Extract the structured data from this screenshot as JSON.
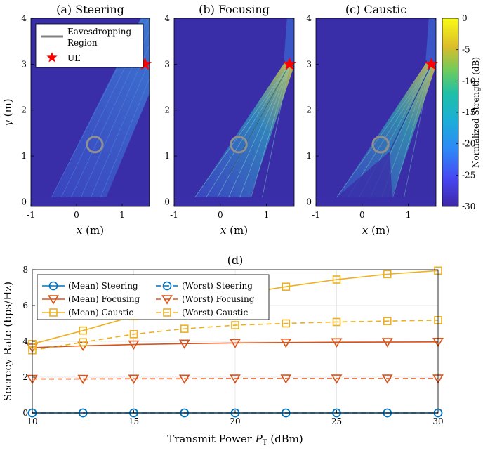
{
  "top_panels": {
    "titles": [
      "(a) Steering",
      "(b) Focusing",
      "(c) Caustic"
    ],
    "xlabel_var": "x",
    "xlabel_unit": " (m)",
    "ylabel_var": "y",
    "ylabel_unit": " (m)",
    "xticks": [
      "-1",
      "0",
      "1"
    ],
    "yticks": [
      "0",
      "1",
      "2",
      "3",
      "4"
    ],
    "legend": {
      "region": "Eavesdropping",
      "region2": "Region",
      "ue": "UE"
    },
    "colorbar": {
      "label": "Normalized Strength (dB)",
      "ticks": [
        "0",
        "-5",
        "-10",
        "-15",
        "-20",
        "-25",
        "-30"
      ]
    },
    "colors": {
      "background": "#3a2ea8",
      "circle": "#909090",
      "star": "#ff0000",
      "legend_line": "#808080"
    }
  },
  "chart_data": [
    {
      "type": "heatmap",
      "title": "(a) Steering",
      "xlim": [
        -1,
        1.6
      ],
      "ylim": [
        -0.1,
        4
      ],
      "ue": [
        1.5,
        3.0
      ],
      "eavesdrop_circle": {
        "center": [
          0.4,
          1.25
        ],
        "radius": 0.17
      }
    },
    {
      "type": "heatmap",
      "title": "(b) Focusing",
      "xlim": [
        -1,
        1.6
      ],
      "ylim": [
        -0.1,
        4
      ],
      "ue": [
        1.5,
        3.0
      ],
      "eavesdrop_circle": {
        "center": [
          0.4,
          1.25
        ],
        "radius": 0.17
      }
    },
    {
      "type": "heatmap",
      "title": "(c) Caustic",
      "xlim": [
        -1,
        1.6
      ],
      "ylim": [
        -0.1,
        4
      ],
      "ue": [
        1.5,
        3.0
      ],
      "eavesdrop_circle": {
        "center": [
          0.4,
          1.25
        ],
        "radius": 0.17
      }
    },
    {
      "type": "line",
      "title": "(d)",
      "xlabel": "Transmit Power ",
      "xlabel_sym": "P",
      "xlabel_sub": "T",
      "xlabel_unit": " (dBm)",
      "ylabel": "Secrecy Rate (bps/Hz)",
      "xlim": [
        10,
        30
      ],
      "ylim": [
        0,
        8
      ],
      "xticks": [
        "10",
        "15",
        "20",
        "25",
        "30"
      ],
      "yticks": [
        "0",
        "2",
        "4",
        "6",
        "8"
      ],
      "x": [
        10,
        12.5,
        15,
        17.5,
        20,
        22.5,
        25,
        27.5,
        30
      ],
      "series": [
        {
          "name": "(Mean) Steering",
          "color": "#0072bd",
          "marker": "circle",
          "dash": false,
          "values": [
            0,
            0,
            0,
            0,
            0,
            0,
            0,
            0,
            0
          ]
        },
        {
          "name": "(Worst) Steering",
          "color": "#0072bd",
          "marker": "circle",
          "dash": true,
          "values": [
            0,
            0,
            0,
            0,
            0,
            0,
            0,
            0,
            0
          ]
        },
        {
          "name": "(Mean) Focusing",
          "color": "#d95319",
          "marker": "triangle",
          "dash": false,
          "values": [
            3.65,
            3.75,
            3.82,
            3.87,
            3.91,
            3.93,
            3.95,
            3.96,
            3.97
          ]
        },
        {
          "name": "(Worst) Focusing",
          "color": "#d95319",
          "marker": "triangle",
          "dash": true,
          "values": [
            1.9,
            1.9,
            1.91,
            1.91,
            1.92,
            1.92,
            1.92,
            1.92,
            1.92
          ]
        },
        {
          "name": "(Mean) Caustic",
          "color": "#edb120",
          "marker": "square",
          "dash": false,
          "values": [
            3.85,
            4.6,
            5.4,
            6.1,
            6.6,
            7.05,
            7.45,
            7.75,
            7.95
          ]
        },
        {
          "name": "(Worst) Caustic",
          "color": "#edb120",
          "marker": "square",
          "dash": true,
          "values": [
            3.5,
            3.95,
            4.4,
            4.7,
            4.9,
            5.0,
            5.08,
            5.13,
            5.18
          ]
        }
      ],
      "legend_order": [
        0,
        1,
        2,
        3,
        4,
        5
      ]
    }
  ]
}
